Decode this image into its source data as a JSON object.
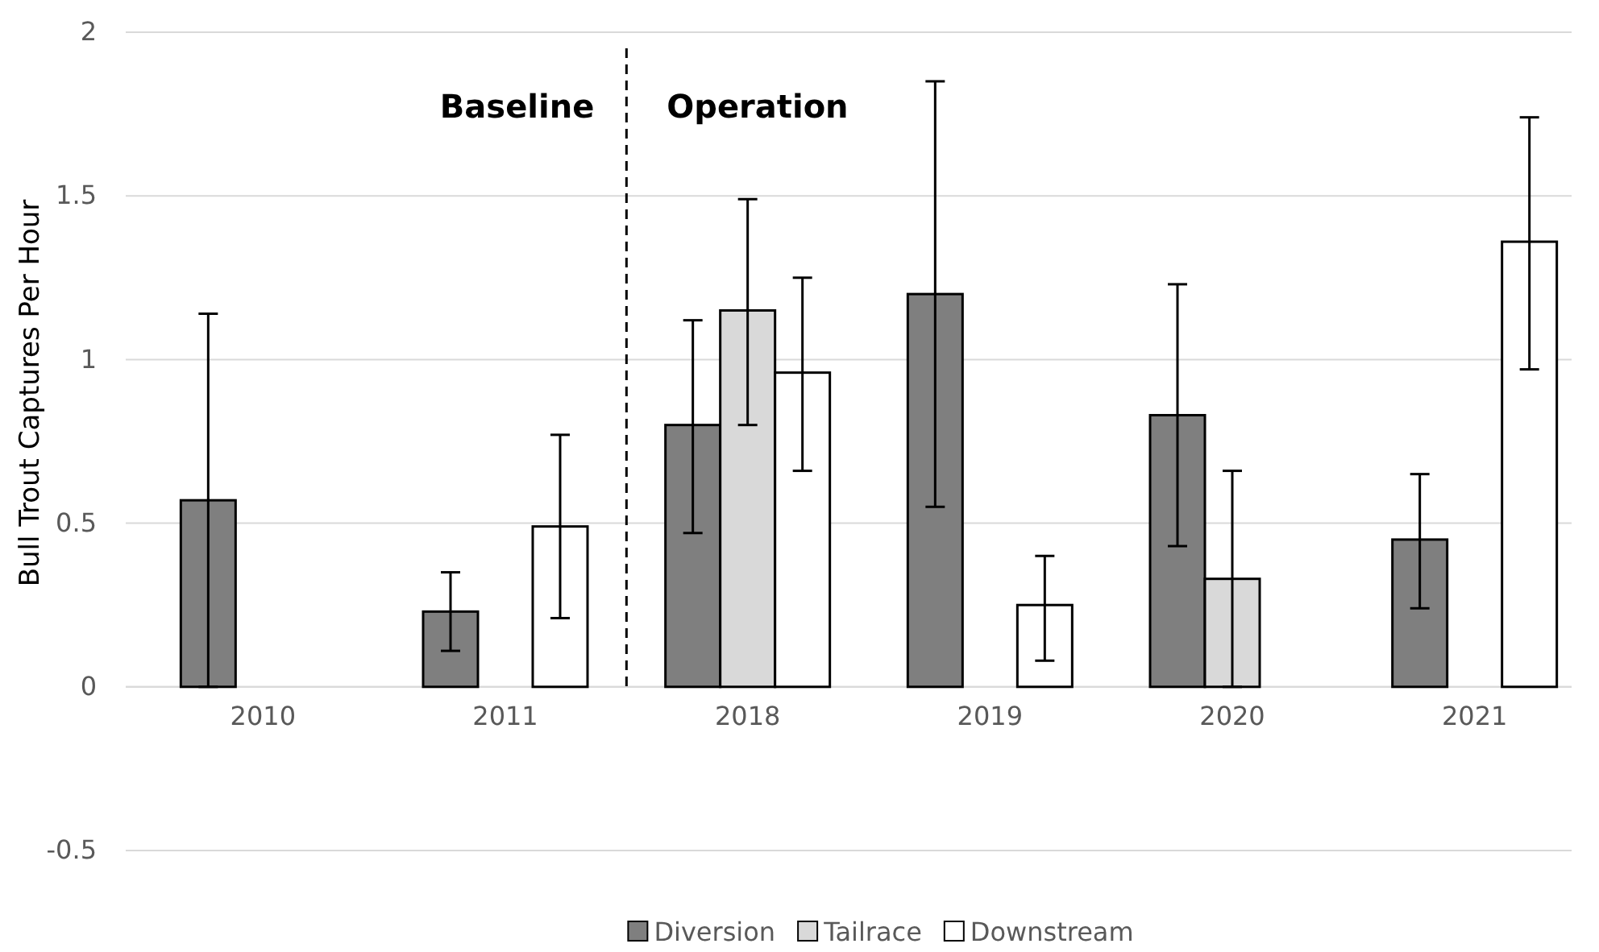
{
  "chart_data": {
    "type": "bar",
    "ylabel": "Bull Trout Captures Per Hour",
    "categories": [
      "2010",
      "2011",
      "2018",
      "2019",
      "2020",
      "2021"
    ],
    "series": [
      {
        "name": "Diversion",
        "color": "#7f7f7f",
        "values": [
          0.57,
          0.23,
          0.8,
          1.2,
          0.83,
          0.45
        ],
        "errors": [
          [
            0,
            1.14
          ],
          [
            0.11,
            0.35
          ],
          [
            0.47,
            1.12
          ],
          [
            0.55,
            1.85
          ],
          [
            0.43,
            1.23
          ],
          [
            0.24,
            0.65
          ]
        ]
      },
      {
        "name": "Tailrace",
        "color": "#d9d9d9",
        "values": [
          null,
          null,
          1.15,
          null,
          0.33,
          null
        ],
        "errors": [
          null,
          null,
          [
            0.8,
            1.49
          ],
          null,
          [
            0,
            0.66
          ],
          null
        ]
      },
      {
        "name": "Downstream",
        "color": "#ffffff",
        "values": [
          null,
          0.49,
          0.96,
          0.25,
          null,
          1.36
        ],
        "errors": [
          null,
          [
            0.21,
            0.77
          ],
          [
            0.66,
            1.25
          ],
          [
            0.08,
            0.4
          ],
          null,
          [
            0.97,
            1.74
          ]
        ]
      }
    ],
    "ylim": [
      -0.5,
      2
    ],
    "yticks": [
      -0.5,
      0,
      0.5,
      1,
      1.5,
      2
    ],
    "grid": "y",
    "legend": "bottom",
    "annotations": [
      "Baseline",
      "Operation"
    ]
  }
}
